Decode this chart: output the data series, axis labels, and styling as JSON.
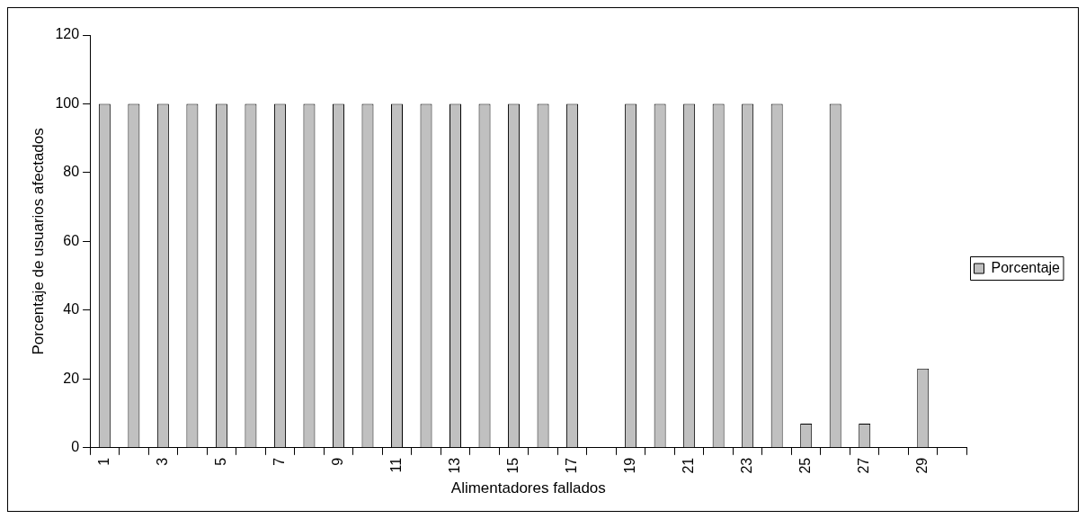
{
  "chart_data": {
    "type": "bar",
    "xlabel": "Alimentadores fallados",
    "ylabel": "Porcentaje de usuarios afectados",
    "categories": [
      "1",
      null,
      "3",
      null,
      "5",
      null,
      "7",
      null,
      "9",
      null,
      "11",
      null,
      "13",
      null,
      "15",
      null,
      "17",
      null,
      "19",
      null,
      "21",
      null,
      "23",
      null,
      "25",
      null,
      "27",
      null,
      "29",
      null
    ],
    "series": [
      {
        "name": "Porcentaje",
        "color": "#c0c0c0",
        "values": [
          100,
          100,
          100,
          100,
          100,
          100,
          100,
          100,
          100,
          100,
          100,
          100,
          100,
          100,
          100,
          100,
          100,
          null,
          100,
          100,
          100,
          100,
          100,
          100,
          7,
          100,
          7,
          null,
          23,
          null
        ]
      }
    ],
    "ylim": [
      0,
      120
    ],
    "yticks": [
      0,
      20,
      40,
      60,
      80,
      100,
      120
    ],
    "grid": false,
    "legend": "right"
  }
}
